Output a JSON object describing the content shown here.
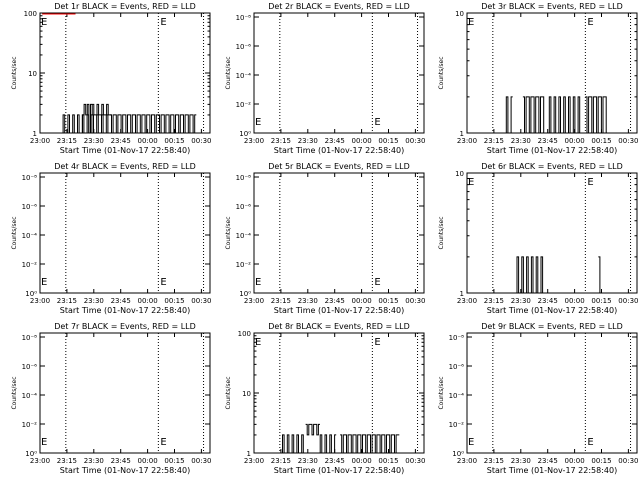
{
  "figure": {
    "background": "#ffffff",
    "line_color": "#000000",
    "lld_color": "#ff0000"
  },
  "chart_data": [
    {
      "id": "p1",
      "type": "line",
      "title": "Det 1r BLACK = Events, RED = LLD",
      "ylabel": "Counts/sec",
      "xlabel": "Start Time (01-Nov-17 22:58:40)",
      "xticks": [
        "23:00",
        "23:15",
        "23:30",
        "23:45",
        "00:00",
        "00:15",
        "00:30"
      ],
      "yscale": "log",
      "ylim": [
        1,
        100
      ],
      "yticks": [
        "1",
        "10",
        "100"
      ],
      "marker_label": "E",
      "bursts": [
        {
          "x": [
            23.2,
            23.65
          ],
          "levels": [
            1,
            2
          ]
        },
        {
          "x": [
            23.38,
            23.47
          ],
          "levels": [
            1,
            2,
            3
          ]
        },
        {
          "x": [
            23.47,
            23.65
          ],
          "levels": [
            2,
            3
          ]
        },
        {
          "x": [
            23.65,
            24.45
          ],
          "levels": [
            1,
            2
          ]
        }
      ],
      "lld_segment": {
        "x": [
          23.02,
          23.33
        ],
        "y": 100
      }
    },
    {
      "id": "p2",
      "type": "line",
      "title": "Det 2r BLACK = Events, RED = LLD",
      "ylabel": "Counts/sec",
      "xlabel": "Start Time (01-Nov-17 22:58:40)",
      "xticks": [
        "23:00",
        "23:15",
        "23:30",
        "23:45",
        "00:00",
        "00:15",
        "00:30"
      ],
      "yscale": "log",
      "yticks": [
        "10⁰",
        "10⁻²",
        "10⁻⁴",
        "10⁻⁶",
        "10⁻⁸"
      ],
      "marker_label": "E",
      "bursts": []
    },
    {
      "id": "p3",
      "type": "line",
      "title": "Det 3r BLACK = Events, RED = LLD",
      "ylabel": "Counts/sec",
      "xlabel": "Start Time (01-Nov-17 22:58:40)",
      "xticks": [
        "23:00",
        "23:15",
        "23:30",
        "23:45",
        "00:00",
        "00:15",
        "00:30"
      ],
      "yscale": "log",
      "ylim": [
        1,
        10
      ],
      "yticks": [
        "1",
        "10"
      ],
      "marker_label": "E",
      "bursts": [
        {
          "x": [
            23.35,
            23.42
          ],
          "levels": [
            1,
            2
          ]
        },
        {
          "x": [
            23.52,
            23.72
          ],
          "levels": [
            1,
            2
          ]
        },
        {
          "x": [
            23.75,
            24.05
          ],
          "levels": [
            1,
            2
          ]
        },
        {
          "x": [
            24.1,
            24.3
          ],
          "levels": [
            1,
            2
          ]
        }
      ]
    },
    {
      "id": "p4",
      "type": "line",
      "title": "Det 4r BLACK = Events, RED = LLD",
      "ylabel": "Counts/sec",
      "xlabel": "Start Time (01-Nov-17 22:58:40)",
      "xticks": [
        "23:00",
        "23:15",
        "23:30",
        "23:45",
        "00:00",
        "00:15",
        "00:30"
      ],
      "yscale": "log",
      "yticks": [
        "10⁰",
        "10⁻²",
        "10⁻⁴",
        "10⁻⁶",
        "10⁻⁸"
      ],
      "marker_label": "E",
      "bursts": []
    },
    {
      "id": "p5",
      "type": "line",
      "title": "Det 5r BLACK = Events, RED = LLD",
      "ylabel": "Counts/sec",
      "xlabel": "Start Time (01-Nov-17 22:58:40)",
      "xticks": [
        "23:00",
        "23:15",
        "23:30",
        "23:45",
        "00:00",
        "00:15",
        "00:30"
      ],
      "yscale": "log",
      "yticks": [
        "10⁰",
        "10⁻²",
        "10⁻⁴",
        "10⁻⁶",
        "10⁻⁸"
      ],
      "marker_label": "E",
      "bursts": []
    },
    {
      "id": "p6",
      "type": "line",
      "title": "Det 6r BLACK = Events, RED = LLD",
      "ylabel": "Counts/sec",
      "xlabel": "Start Time (01-Nov-17 22:58:40)",
      "xticks": [
        "23:00",
        "23:15",
        "23:30",
        "23:45",
        "00:00",
        "00:15",
        "00:30"
      ],
      "yscale": "log",
      "ylim": [
        1,
        10
      ],
      "yticks": [
        "1",
        "10"
      ],
      "marker_label": "E",
      "bursts": [
        {
          "x": [
            23.45,
            23.72
          ],
          "levels": [
            1,
            2
          ]
        },
        {
          "x": [
            24.22,
            24.24
          ],
          "levels": [
            1,
            2
          ]
        }
      ]
    },
    {
      "id": "p7",
      "type": "line",
      "title": "Det 7r BLACK = Events, RED = LLD",
      "ylabel": "Counts/sec",
      "xlabel": "Start Time (01-Nov-17 22:58:40)",
      "xticks": [
        "23:00",
        "23:15",
        "23:30",
        "23:45",
        "00:00",
        "00:15",
        "00:30"
      ],
      "yscale": "log",
      "yticks": [
        "10⁰",
        "10⁻²",
        "10⁻⁴",
        "10⁻⁶",
        "10⁻⁸"
      ],
      "marker_label": "E",
      "bursts": []
    },
    {
      "id": "p8",
      "type": "line",
      "title": "Det 8r BLACK = Events, RED = LLD",
      "ylabel": "Counts/sec",
      "xlabel": "Start Time (01-Nov-17 22:58:40)",
      "xticks": [
        "23:00",
        "23:15",
        "23:30",
        "23:45",
        "00:00",
        "00:15",
        "00:30"
      ],
      "yscale": "log",
      "ylim": [
        1,
        100
      ],
      "yticks": [
        "1",
        "10",
        "100"
      ],
      "marker_label": "E",
      "bursts": [
        {
          "x": [
            23.25,
            23.48
          ],
          "levels": [
            1,
            2
          ]
        },
        {
          "x": [
            23.48,
            23.6
          ],
          "levels": [
            2,
            3
          ]
        },
        {
          "x": [
            23.6,
            23.75
          ],
          "levels": [
            1,
            2
          ]
        },
        {
          "x": [
            23.8,
            24.35
          ],
          "levels": [
            1,
            2
          ]
        }
      ]
    },
    {
      "id": "p9",
      "type": "line",
      "title": "Det 9r BLACK = Events, RED = LLD",
      "ylabel": "Counts/sec",
      "xlabel": "Start Time (01-Nov-17 22:58:40)",
      "xticks": [
        "23:00",
        "23:15",
        "23:30",
        "23:45",
        "00:00",
        "00:15",
        "00:30"
      ],
      "yscale": "log",
      "yticks": [
        "10⁰",
        "10⁻²",
        "10⁻⁴",
        "10⁻⁶",
        "10⁻⁸"
      ],
      "marker_label": "E",
      "bursts": []
    }
  ]
}
